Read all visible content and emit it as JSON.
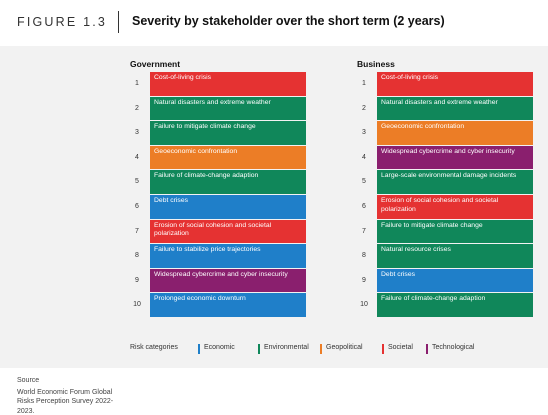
{
  "figure_label": "FIGURE 1.3",
  "title": "Severity by stakeholder over the short term (2 years)",
  "colors": {
    "Economic": "#1f7fc9",
    "Environmental": "#10875a",
    "Geopolitical": "#ec7d26",
    "Societal": "#e53232",
    "Technological": "#8a1f6e"
  },
  "chart_data": {
    "type": "table",
    "title": "Severity by stakeholder over the short term (2 years)",
    "columns": [
      {
        "name": "Government",
        "rows": [
          {
            "rank": "1",
            "label": "Cost-of-living crisis",
            "category": "Societal"
          },
          {
            "rank": "2",
            "label": "Natural disasters and extreme weather",
            "category": "Environmental"
          },
          {
            "rank": "3",
            "label": "Failure to mitigate climate change",
            "category": "Environmental"
          },
          {
            "rank": "4",
            "label": "Geoeconomic confrontation",
            "category": "Geopolitical"
          },
          {
            "rank": "5",
            "label": "Failure of climate-change adaption",
            "category": "Environmental"
          },
          {
            "rank": "6",
            "label": "Debt crises",
            "category": "Economic"
          },
          {
            "rank": "7",
            "label": "Erosion of social cohesion and societal polarization",
            "category": "Societal"
          },
          {
            "rank": "8",
            "label": "Failure to stabilize price trajectories",
            "category": "Economic"
          },
          {
            "rank": "9",
            "label": "Widespread cybercrime and cyber insecurity",
            "category": "Technological"
          },
          {
            "rank": "10",
            "label": "Prolonged economic downturn",
            "category": "Economic"
          }
        ]
      },
      {
        "name": "Business",
        "rows": [
          {
            "rank": "1",
            "label": "Cost-of-living crisis",
            "category": "Societal"
          },
          {
            "rank": "2",
            "label": "Natural disasters and extreme weather",
            "category": "Environmental"
          },
          {
            "rank": "3",
            "label": "Geoeconomic confrontation",
            "category": "Geopolitical"
          },
          {
            "rank": "4",
            "label": "Widespread cybercrime and cyber insecurity",
            "category": "Technological"
          },
          {
            "rank": "5",
            "label": "Large-scale environmental damage incidents",
            "category": "Environmental"
          },
          {
            "rank": "6",
            "label": "Erosion of social cohesion and societal polarization",
            "category": "Societal"
          },
          {
            "rank": "7",
            "label": "Failure to mitigate climate change",
            "category": "Environmental"
          },
          {
            "rank": "8",
            "label": "Natural resource crises",
            "category": "Environmental"
          },
          {
            "rank": "9",
            "label": "Debt crises",
            "category": "Economic"
          },
          {
            "rank": "10",
            "label": "Failure of climate-change adaption",
            "category": "Environmental"
          }
        ]
      }
    ],
    "legend": {
      "title": "Risk categories",
      "items": [
        "Economic",
        "Environmental",
        "Geopolitical",
        "Societal",
        "Technological"
      ]
    }
  },
  "source": {
    "title": "Source",
    "text": "World Economic Forum Global Risks Perception Survey 2022-2023."
  }
}
